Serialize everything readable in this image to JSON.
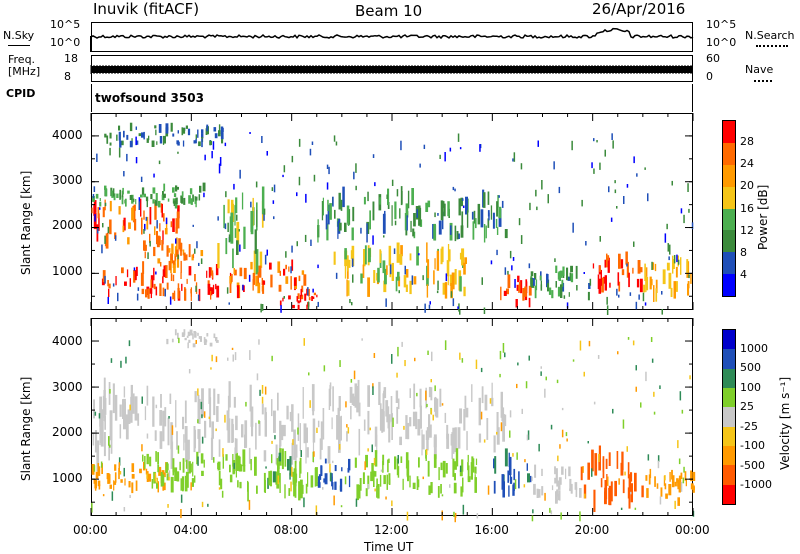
{
  "header": {
    "station": "Inuvik (fitACF)",
    "beam": "Beam 10",
    "date": "26/Apr/2016"
  },
  "top_panels": {
    "nsky_label": "N.Sky",
    "nsearch_label": "N.Search",
    "noise_ticks": [
      "10^5",
      "10^0"
    ],
    "freq_label_1": "Freq.",
    "freq_label_2": "[MHz]",
    "freq_ticks": [
      "18",
      "8"
    ],
    "nave_label": "Nave",
    "nave_ticks": [
      "60",
      "0"
    ],
    "cpid_label": "CPID",
    "program": "twofsound 3503"
  },
  "colors": {
    "power": [
      "#0000ff",
      "#1f4fb8",
      "#3b8a3b",
      "#4caf50",
      "#f5c518",
      "#ff9a00",
      "#ff6a00",
      "#ff0000"
    ],
    "velocity": [
      "#ff0000",
      "#ff5a00",
      "#ff9a00",
      "#f5c518",
      "#c8c8c8",
      "#7fcf2a",
      "#2e8b57",
      "#1f4fb8",
      "#0000cc"
    ]
  },
  "chart_data": [
    {
      "type": "heatmap",
      "quantity": "power",
      "ylabel": "Slant Range [km]",
      "xlabel": "",
      "x_ticks": [
        "00:00",
        "04:00",
        "08:00",
        "12:00",
        "16:00",
        "20:00",
        "00:00"
      ],
      "y_ticks": [
        "1000",
        "2000",
        "3000",
        "4000"
      ],
      "ylim": [
        200,
        4500
      ],
      "colorbar": {
        "label": "Power [dB]",
        "ticks": [
          "4",
          "8",
          "12",
          "16",
          "20",
          "24",
          "28"
        ],
        "range": [
          0,
          32
        ]
      },
      "regions": [
        {
          "t0": 0.0,
          "t1": 3.5,
          "r0": 1700,
          "r1": 2500,
          "level": 26
        },
        {
          "t0": 0.0,
          "t1": 4.5,
          "r0": 2500,
          "r1": 2900,
          "level": 12
        },
        {
          "t0": 2.0,
          "t1": 4.5,
          "r0": 1100,
          "r1": 1700,
          "level": 24
        },
        {
          "t0": 0.3,
          "t1": 5.0,
          "r0": 500,
          "r1": 1100,
          "level": 28
        },
        {
          "t0": 5.0,
          "t1": 7.0,
          "r0": 1200,
          "r1": 2600,
          "level": 14
        },
        {
          "t0": 5.5,
          "t1": 8.5,
          "r0": 600,
          "r1": 1200,
          "level": 26
        },
        {
          "t0": 7.5,
          "t1": 9.0,
          "r0": 250,
          "r1": 600,
          "level": 30
        },
        {
          "t0": 9.0,
          "t1": 16.5,
          "r0": 1800,
          "r1": 2700,
          "level": 10
        },
        {
          "t0": 9.5,
          "t1": 15.0,
          "r0": 600,
          "r1": 1500,
          "level": 18
        },
        {
          "t0": 16.3,
          "t1": 17.5,
          "r0": 300,
          "r1": 900,
          "level": 28
        },
        {
          "t0": 17.5,
          "t1": 20.0,
          "r0": 500,
          "r1": 1100,
          "level": 10
        },
        {
          "t0": 20.0,
          "t1": 22.0,
          "r0": 700,
          "r1": 1400,
          "level": 29
        },
        {
          "t0": 22.0,
          "t1": 24.0,
          "r0": 500,
          "r1": 1300,
          "level": 20
        },
        {
          "t0": 0.5,
          "t1": 5.2,
          "r0": 3800,
          "r1": 4200,
          "level": 8
        }
      ]
    },
    {
      "type": "heatmap",
      "quantity": "velocity",
      "ylabel": "Slant Range [km]",
      "xlabel": "Time UT",
      "x_ticks": [
        "00:00",
        "04:00",
        "08:00",
        "12:00",
        "16:00",
        "20:00",
        "00:00"
      ],
      "y_ticks": [
        "1000",
        "2000",
        "3000",
        "4000"
      ],
      "ylim": [
        200,
        4500
      ],
      "colorbar": {
        "label": "Velocity [m s⁻¹]",
        "ticks": [
          "1000",
          "500",
          "100",
          "25",
          "-25",
          "-100",
          "-500",
          "-1000"
        ]
      },
      "regions": [
        {
          "t0": 0.0,
          "t1": 9.5,
          "r0": 1500,
          "r1": 2900,
          "level": 0
        },
        {
          "t0": 9.5,
          "t1": 16.5,
          "r0": 1700,
          "r1": 2900,
          "level": 0
        },
        {
          "t0": 0.0,
          "t1": 3.0,
          "r0": 800,
          "r1": 1300,
          "level": -300
        },
        {
          "t0": 2.0,
          "t1": 6.0,
          "r0": 800,
          "r1": 1500,
          "level": 50
        },
        {
          "t0": 5.5,
          "t1": 9.0,
          "r0": 700,
          "r1": 1600,
          "level": 80
        },
        {
          "t0": 9.0,
          "t1": 10.5,
          "r0": 800,
          "r1": 1400,
          "level": 600
        },
        {
          "t0": 10.5,
          "t1": 15.5,
          "r0": 700,
          "r1": 1500,
          "level": 70
        },
        {
          "t0": 16.0,
          "t1": 17.5,
          "r0": 700,
          "r1": 1500,
          "level": 600
        },
        {
          "t0": 17.5,
          "t1": 19.5,
          "r0": 600,
          "r1": 1200,
          "level": 0
        },
        {
          "t0": 19.5,
          "t1": 22.0,
          "r0": 500,
          "r1": 1500,
          "level": -700
        },
        {
          "t0": 22.0,
          "t1": 24.0,
          "r0": 500,
          "r1": 1100,
          "level": -200
        },
        {
          "t0": 3.0,
          "t1": 5.0,
          "r0": 3900,
          "r1": 4200,
          "level": 0
        }
      ]
    }
  ]
}
